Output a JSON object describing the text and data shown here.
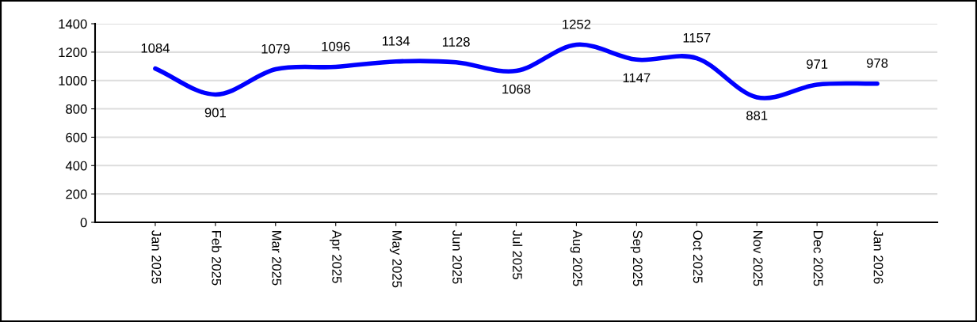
{
  "chart_data": {
    "type": "line",
    "categories": [
      "Jan 2025",
      "Feb 2025",
      "Mar 2025",
      "Apr 2025",
      "May 2025",
      "Jun 2025",
      "Jul 2025",
      "Aug 2025",
      "Sep 2025",
      "Oct 2025",
      "Nov 2025",
      "Dec 2025",
      "Jan 2026"
    ],
    "series": [
      {
        "color": "#0000ff",
        "values": [
          1084,
          901,
          1079,
          1096,
          1134,
          1128,
          1068,
          1252,
          1147,
          1157,
          881,
          971,
          978
        ]
      }
    ],
    "ylim": [
      0,
      1400
    ],
    "yticks": [
      0,
      200,
      400,
      600,
      800,
      1000,
      1200,
      1400
    ],
    "grid": "y",
    "data_labels": true,
    "marker": "none",
    "line_style": "solid"
  }
}
